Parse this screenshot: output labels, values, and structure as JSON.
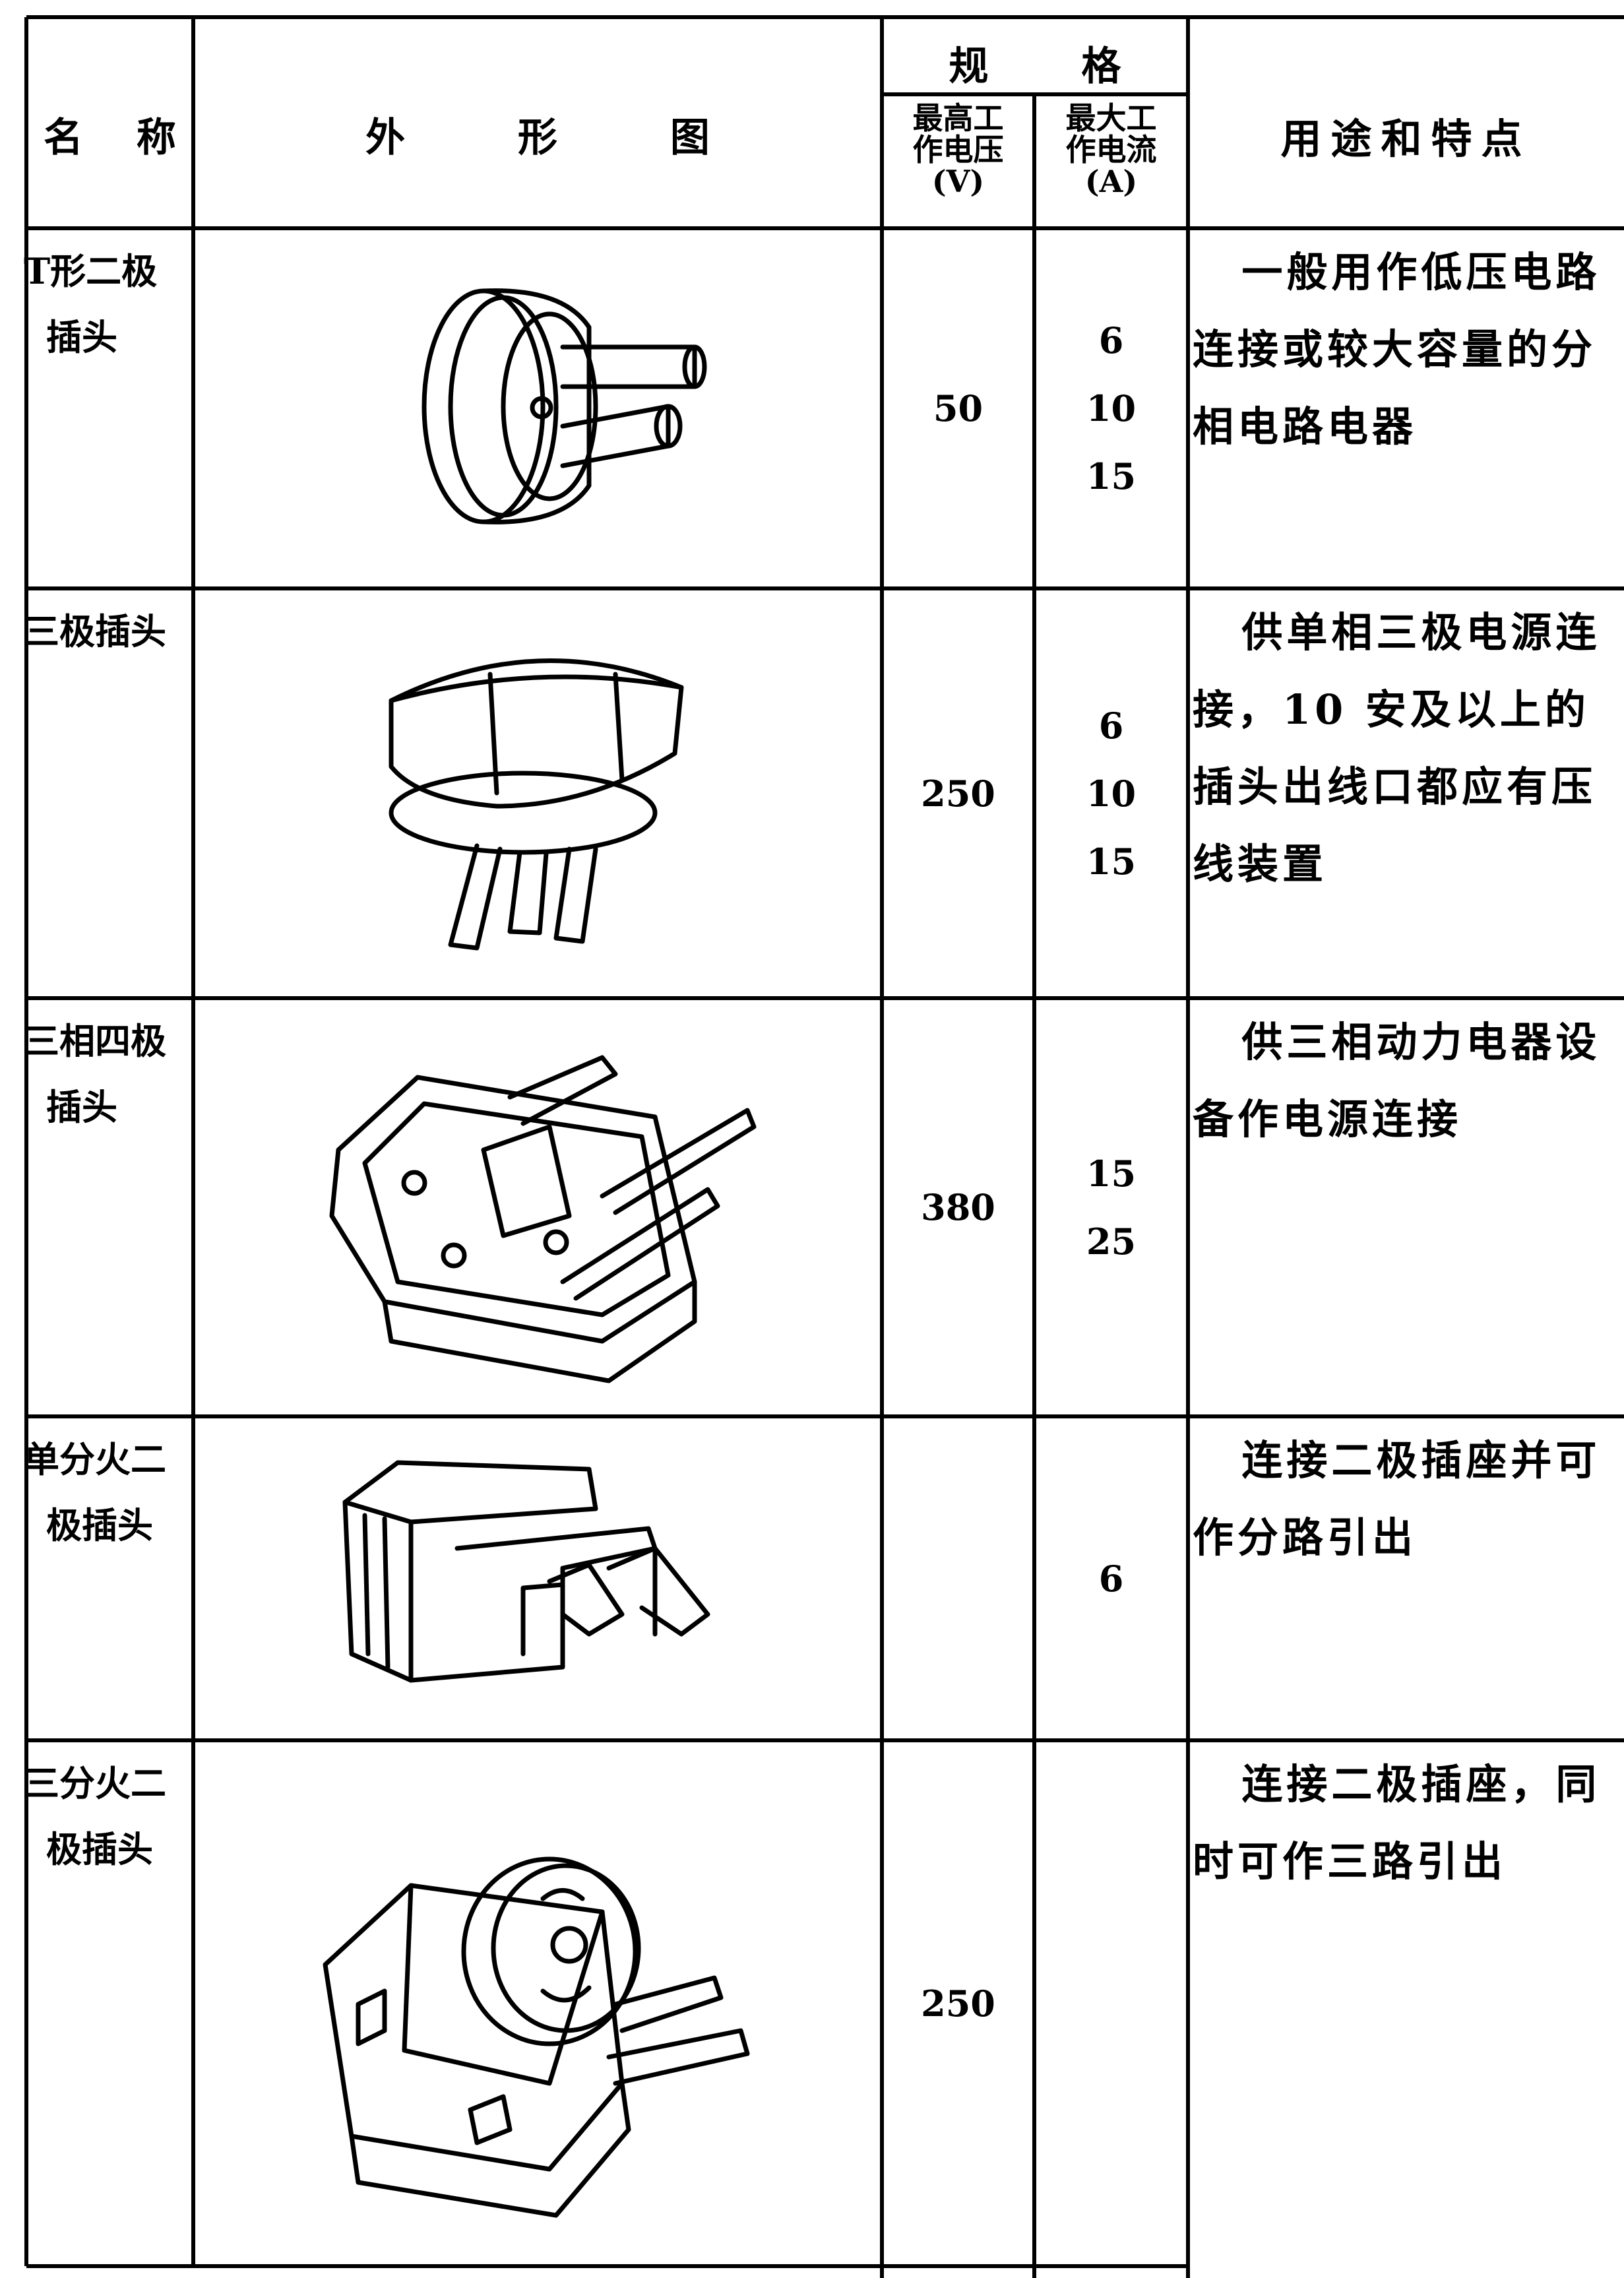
{
  "table": {
    "header": {
      "name": "名 称",
      "figure": "外 形 图",
      "spec": "规 格",
      "voltage": [
        "最高工",
        "作电压",
        "(V)"
      ],
      "current": [
        "最大工",
        "作电流",
        "(A)"
      ],
      "usage": "用途和特点"
    },
    "rows": [
      {
        "name": [
          "T形二极",
          "插头"
        ],
        "voltage": 50,
        "current": [
          6,
          10,
          15
        ],
        "usage": "一般用作低压电路连接或较大容量的分相电路电器"
      },
      {
        "name": [
          "三极插头"
        ],
        "voltage": 250,
        "current": [
          6,
          10,
          15
        ],
        "usage": "供单相三极电源连接，10 安及以上的插头出线口都应有压线装置"
      },
      {
        "name": [
          "三相四极",
          "插头"
        ],
        "voltage": 380,
        "current": [
          15,
          25
        ],
        "usage": "供三相动力电器设备作电源连接"
      },
      {
        "name": [
          "单分火二",
          "极插头"
        ],
        "current": [
          6
        ],
        "usage": "连接二极插座并可作分路引出"
      },
      {
        "name": [
          "三分火二",
          "极插头"
        ],
        "voltage": 250,
        "usage": "连接二极插座，同时可作三路引出"
      }
    ]
  }
}
